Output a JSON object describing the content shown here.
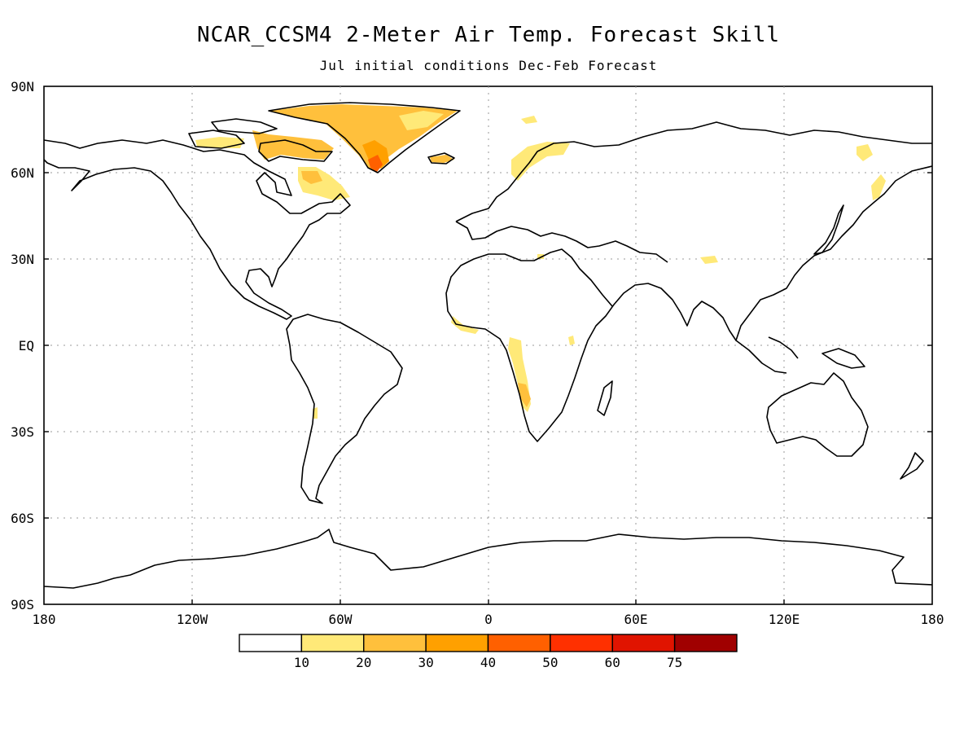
{
  "title": "NCAR_CCSM4 2-Meter Air Temp. Forecast Skill",
  "subtitle": "Jul initial conditions  Dec-Feb Forecast",
  "lat_labels": [
    "90N",
    "60N",
    "30N",
    "EQ",
    "30S",
    "60S",
    "90S"
  ],
  "lon_labels": [
    "180",
    "120W",
    "60W",
    "0",
    "60E",
    "120E",
    "180"
  ],
  "colorbar": {
    "colors": [
      "#ffffff",
      "#ffe978",
      "#ffc03c",
      "#ffa000",
      "#ff6000",
      "#ff3000",
      "#e01400",
      "#a00000"
    ],
    "labels": [
      "10",
      "20",
      "30",
      "40",
      "50",
      "60",
      "75"
    ]
  },
  "chart_data": {
    "type": "heatmap",
    "variable": "2-Meter Air Temp. Forecast Skill",
    "lat_range": [
      -90,
      90
    ],
    "lon_range": [
      -180,
      180
    ],
    "grid": "dotted",
    "skill_regions": [
      {
        "region": "Greenland",
        "level": "10-30",
        "peak": "40-50 (southern tip)"
      },
      {
        "region": "Canadian Arctic Archipelago",
        "level": "10-30"
      },
      {
        "region": "Hudson Bay / Quebec",
        "level": "10-20"
      },
      {
        "region": "Scandinavia",
        "level": "10-20"
      },
      {
        "region": "Southwest Africa coast",
        "level": "10-30"
      },
      {
        "region": "Tibetan Plateau",
        "level": "10-20"
      },
      {
        "region": "Kamchatka",
        "level": "10-20"
      }
    ]
  }
}
